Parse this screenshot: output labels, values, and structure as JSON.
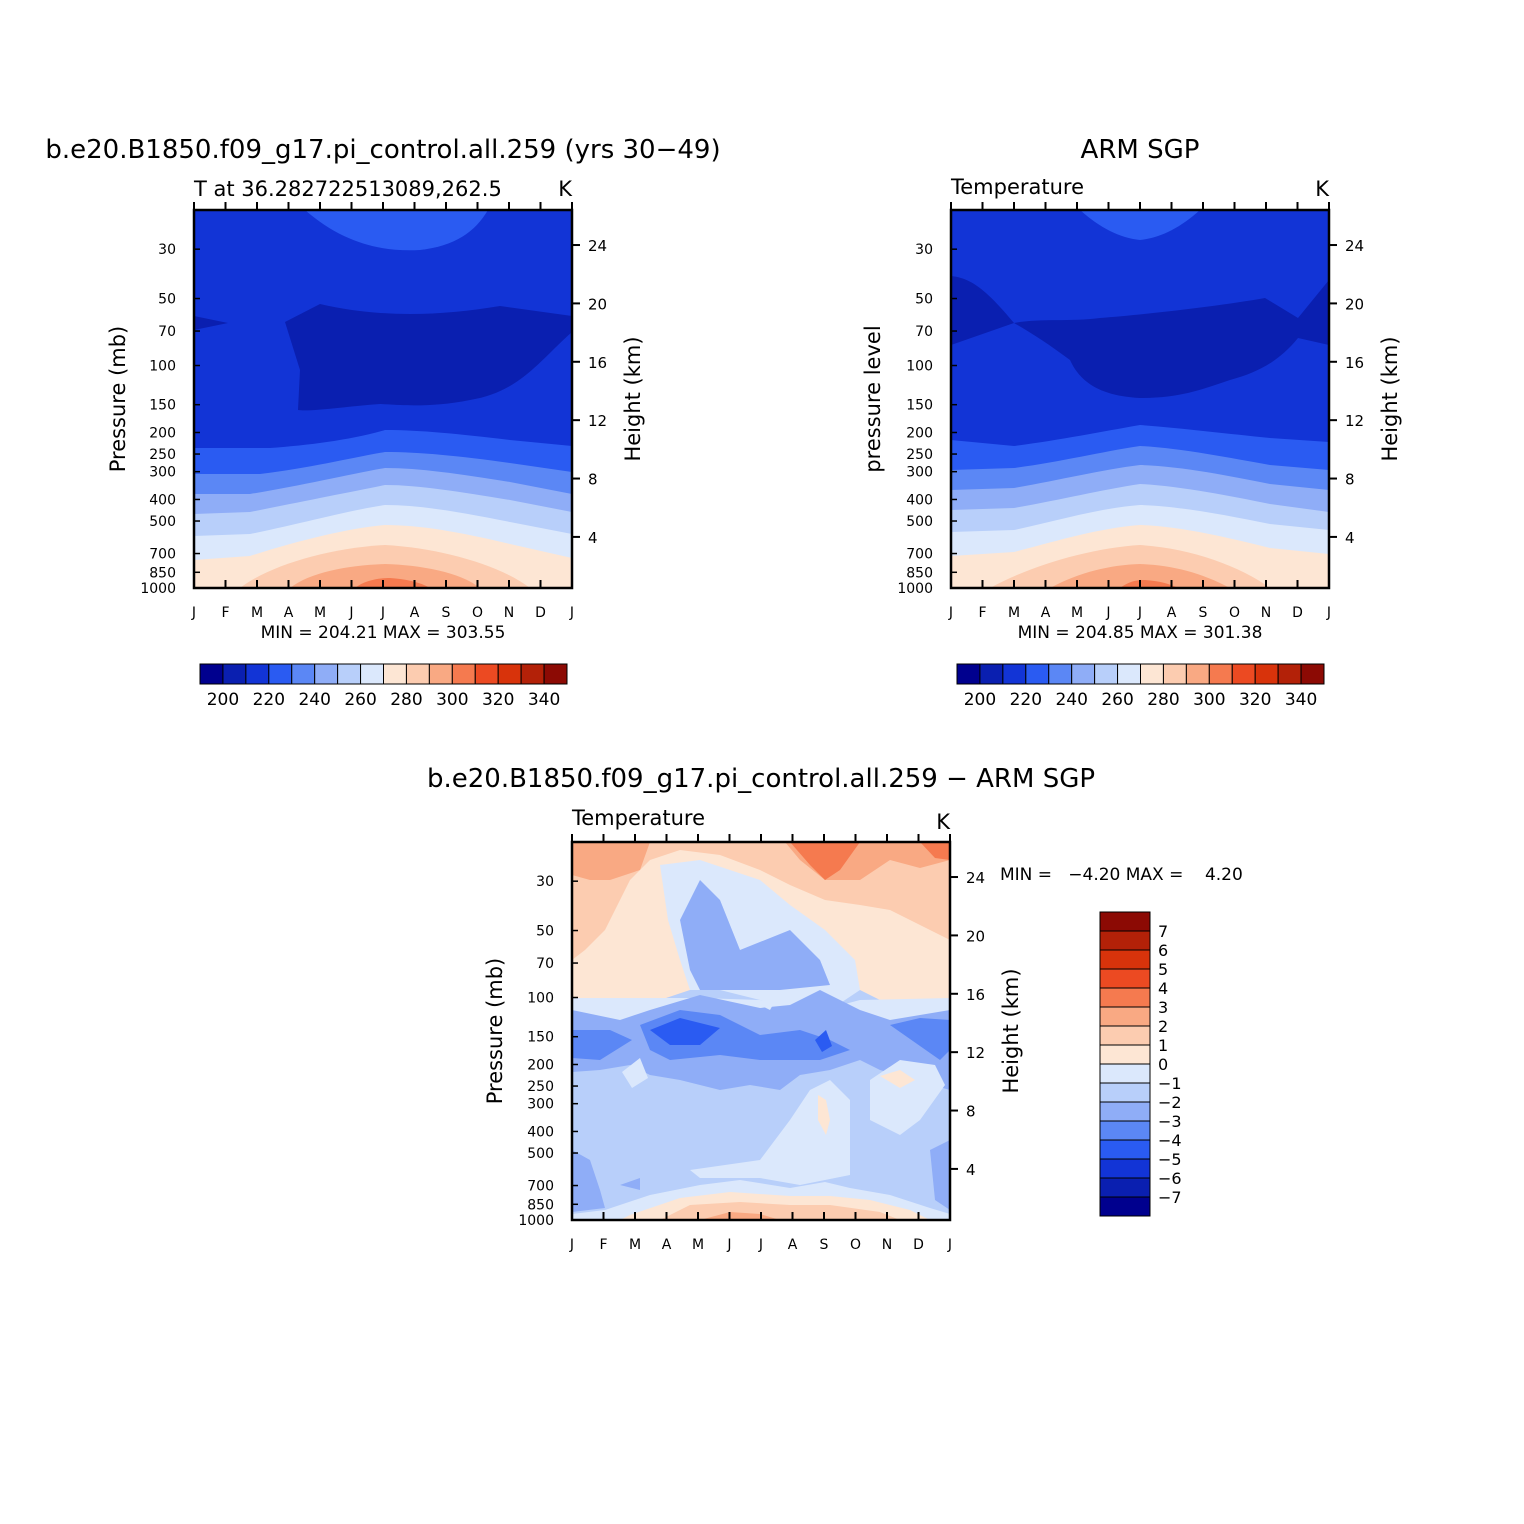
{
  "chart_data": [
    {
      "id": "model",
      "type": "contour",
      "title": "b.e20.B1850.f09_g17.pi_control.all.259 (yrs 30−49)",
      "left_subtitle": "T at 36.282722513089,262.5",
      "right_subtitle": "K",
      "ylabel": "Pressure (mb)",
      "ylabel_right": "Height (km)",
      "x_ticks": [
        "J",
        "F",
        "M",
        "A",
        "M",
        "J",
        "J",
        "A",
        "S",
        "O",
        "N",
        "D",
        "J"
      ],
      "y_ticks": [
        "30",
        "50",
        "70",
        "100",
        "150",
        "200",
        "250",
        "300",
        "400",
        "500",
        "700",
        "850",
        "1000"
      ],
      "y_ticks_right": [
        "24",
        "20",
        "16",
        "12",
        "8",
        "4"
      ],
      "stats": "MIN = 204.21 MAX = 303.55",
      "min": 204.21,
      "max": 303.55,
      "colorbar": {
        "labels": [
          "200",
          "220",
          "240",
          "260",
          "280",
          "300",
          "320",
          "340"
        ],
        "levels": [
          190,
          200,
          210,
          220,
          230,
          240,
          250,
          260,
          270,
          280,
          290,
          300,
          310,
          320,
          330,
          340,
          350
        ]
      }
    },
    {
      "id": "obs",
      "type": "contour",
      "title": "ARM SGP",
      "left_subtitle": "Temperature",
      "right_subtitle": "K",
      "ylabel": "pressure level",
      "ylabel_right": "Height (km)",
      "x_ticks": [
        "J",
        "F",
        "M",
        "A",
        "M",
        "J",
        "J",
        "A",
        "S",
        "O",
        "N",
        "D",
        "J"
      ],
      "y_ticks": [
        "30",
        "50",
        "70",
        "100",
        "150",
        "200",
        "250",
        "300",
        "400",
        "500",
        "700",
        "850",
        "1000"
      ],
      "y_ticks_right": [
        "24",
        "20",
        "16",
        "12",
        "8",
        "4"
      ],
      "stats": "MIN = 204.85 MAX = 301.38",
      "min": 204.85,
      "max": 301.38,
      "colorbar": {
        "labels": [
          "200",
          "220",
          "240",
          "260",
          "280",
          "300",
          "320",
          "340"
        ],
        "levels": [
          190,
          200,
          210,
          220,
          230,
          240,
          250,
          260,
          270,
          280,
          290,
          300,
          310,
          320,
          330,
          340,
          350
        ]
      }
    },
    {
      "id": "diff",
      "type": "contour",
      "title": "b.e20.B1850.f09_g17.pi_control.all.259 − ARM SGP",
      "left_subtitle": "Temperature",
      "right_subtitle": "K",
      "ylabel": "Pressure (mb)",
      "ylabel_right": "Height (km)",
      "x_ticks": [
        "J",
        "F",
        "M",
        "A",
        "M",
        "J",
        "J",
        "A",
        "S",
        "O",
        "N",
        "D",
        "J"
      ],
      "y_ticks": [
        "30",
        "50",
        "70",
        "100",
        "150",
        "200",
        "250",
        "300",
        "400",
        "500",
        "700",
        "850",
        "1000"
      ],
      "y_ticks_right": [
        "24",
        "20",
        "16",
        "12",
        "8",
        "4"
      ],
      "stats": "MIN =   −4.20 MAX =    4.20",
      "min": -4.2,
      "max": 4.2,
      "colorbar": {
        "labels": [
          "7",
          "6",
          "5",
          "4",
          "3",
          "2",
          "1",
          "0",
          "−1",
          "−2",
          "−3",
          "−4",
          "−5",
          "−6",
          "−7"
        ],
        "levels": [
          -8,
          -7,
          -6,
          -5,
          -4,
          -3,
          -2,
          -1,
          0,
          1,
          2,
          3,
          4,
          5,
          6,
          7,
          8
        ]
      }
    }
  ],
  "colors": {
    "palette": [
      "#00008e",
      "#0a1fb0",
      "#1234d6",
      "#2a5bf2",
      "#5b87f5",
      "#8fadf7",
      "#b8cffa",
      "#dbe8fc",
      "#fde6d4",
      "#fcccb0",
      "#f9a983",
      "#f57a4f",
      "#ec4a22",
      "#d8330b",
      "#b32108",
      "#8c0a04"
    ]
  }
}
